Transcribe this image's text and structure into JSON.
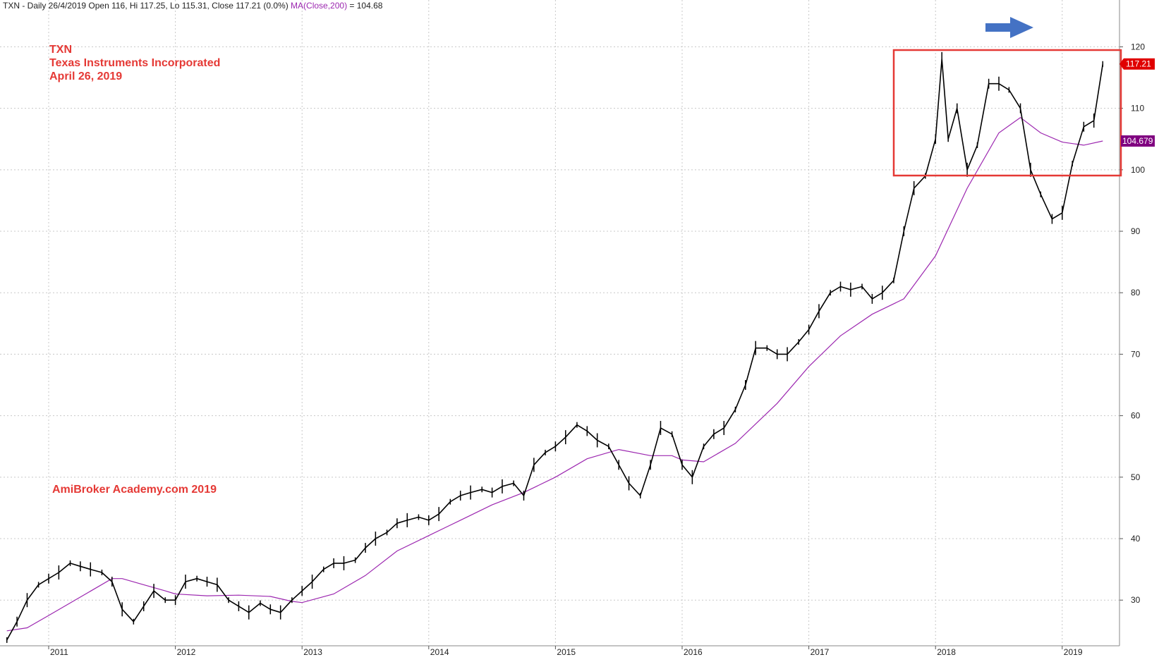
{
  "header": {
    "info_main": "TXN - Daily 26/4/2019 Open 116, Hi 117.25, Lo 115.31, Close 117.21 (0.0%)",
    "info_ma": "MA(Close,200)",
    "info_ma_value": " = 104.68"
  },
  "annotations": {
    "symbol": "TXN",
    "company": "Texas Instruments Incorporated",
    "date": "April 26, 2019",
    "watermark": "AmiBroker Academy.com  2019"
  },
  "colors": {
    "price": "#000000",
    "ma": "#9c27b0",
    "box": "#e53935",
    "arrow": "#4472c4",
    "grid": "#c8c8c8",
    "last_price_bg": "#e00000",
    "ma_label_bg": "#800080"
  },
  "chart_data": {
    "type": "line",
    "x_axis": {
      "ticks": [
        "2011",
        "2012",
        "2013",
        "2014",
        "2015",
        "2016",
        "2017",
        "2018",
        "2019"
      ]
    },
    "y_axis": {
      "ticks": [
        30,
        40,
        50,
        60,
        70,
        80,
        90,
        100,
        110,
        120
      ],
      "range": [
        22.8,
        128.2
      ],
      "side": "right"
    },
    "grid": true,
    "last_price_label": "117.21",
    "ma_label": "104.679",
    "series": [
      {
        "name": "TXN",
        "points": [
          [
            2010.67,
            23.5
          ],
          [
            2010.75,
            26.5
          ],
          [
            2010.83,
            30
          ],
          [
            2010.92,
            32.5
          ],
          [
            2011.0,
            33.5
          ],
          [
            2011.08,
            34.5
          ],
          [
            2011.17,
            36
          ],
          [
            2011.25,
            35.5
          ],
          [
            2011.33,
            35
          ],
          [
            2011.42,
            34.5
          ],
          [
            2011.5,
            33
          ],
          [
            2011.58,
            28.5
          ],
          [
            2011.67,
            26.5
          ],
          [
            2011.75,
            29
          ],
          [
            2011.83,
            31.5
          ],
          [
            2011.92,
            30
          ],
          [
            2012.0,
            30
          ],
          [
            2012.08,
            33
          ],
          [
            2012.17,
            33.5
          ],
          [
            2012.25,
            33
          ],
          [
            2012.33,
            32.5
          ],
          [
            2012.42,
            30
          ],
          [
            2012.5,
            29
          ],
          [
            2012.58,
            28
          ],
          [
            2012.67,
            29.5
          ],
          [
            2012.75,
            28.5
          ],
          [
            2012.83,
            28
          ],
          [
            2012.92,
            30
          ],
          [
            2013.0,
            31.5
          ],
          [
            2013.08,
            33
          ],
          [
            2013.17,
            35
          ],
          [
            2013.25,
            36
          ],
          [
            2013.33,
            36
          ],
          [
            2013.42,
            36.5
          ],
          [
            2013.5,
            38.5
          ],
          [
            2013.58,
            40
          ],
          [
            2013.67,
            41
          ],
          [
            2013.75,
            42.5
          ],
          [
            2013.83,
            43
          ],
          [
            2013.92,
            43.5
          ],
          [
            2014.0,
            43
          ],
          [
            2014.08,
            44
          ],
          [
            2014.17,
            46
          ],
          [
            2014.25,
            47
          ],
          [
            2014.33,
            47.5
          ],
          [
            2014.42,
            48
          ],
          [
            2014.5,
            47.5
          ],
          [
            2014.58,
            48.5
          ],
          [
            2014.67,
            49
          ],
          [
            2014.75,
            47
          ],
          [
            2014.83,
            52
          ],
          [
            2014.92,
            54
          ],
          [
            2015.0,
            55
          ],
          [
            2015.08,
            56.5
          ],
          [
            2015.17,
            58.5
          ],
          [
            2015.25,
            57.5
          ],
          [
            2015.33,
            56
          ],
          [
            2015.42,
            55
          ],
          [
            2015.5,
            52
          ],
          [
            2015.58,
            49
          ],
          [
            2015.67,
            47
          ],
          [
            2015.75,
            52
          ],
          [
            2015.83,
            58
          ],
          [
            2015.92,
            57
          ],
          [
            2016.0,
            52
          ],
          [
            2016.08,
            50
          ],
          [
            2016.17,
            55
          ],
          [
            2016.25,
            57
          ],
          [
            2016.33,
            58
          ],
          [
            2016.42,
            61
          ],
          [
            2016.5,
            65
          ],
          [
            2016.58,
            71
          ],
          [
            2016.67,
            71
          ],
          [
            2016.75,
            70
          ],
          [
            2016.83,
            70
          ],
          [
            2016.92,
            72
          ],
          [
            2017.0,
            74
          ],
          [
            2017.08,
            77
          ],
          [
            2017.17,
            80
          ],
          [
            2017.25,
            81
          ],
          [
            2017.33,
            80.5
          ],
          [
            2017.42,
            81
          ],
          [
            2017.5,
            79
          ],
          [
            2017.58,
            80
          ],
          [
            2017.67,
            82
          ],
          [
            2017.75,
            90
          ],
          [
            2017.83,
            97
          ],
          [
            2017.92,
            99
          ],
          [
            2018.0,
            105
          ],
          [
            2018.05,
            118
          ],
          [
            2018.1,
            105
          ],
          [
            2018.17,
            110
          ],
          [
            2018.25,
            100
          ],
          [
            2018.33,
            104
          ],
          [
            2018.42,
            114
          ],
          [
            2018.5,
            114
          ],
          [
            2018.58,
            113
          ],
          [
            2018.67,
            110
          ],
          [
            2018.75,
            100
          ],
          [
            2018.83,
            96
          ],
          [
            2018.92,
            92
          ],
          [
            2019.0,
            93
          ],
          [
            2019.08,
            101
          ],
          [
            2019.17,
            107
          ],
          [
            2019.25,
            108
          ],
          [
            2019.32,
            117.21
          ]
        ]
      },
      {
        "name": "MA(Close,200)",
        "points": [
          [
            2010.67,
            25
          ],
          [
            2010.83,
            25.5
          ],
          [
            2011.0,
            27.5
          ],
          [
            2011.25,
            30.5
          ],
          [
            2011.5,
            33.5
          ],
          [
            2011.58,
            33.5
          ],
          [
            2011.75,
            32.5
          ],
          [
            2011.92,
            31.5
          ],
          [
            2012.0,
            31
          ],
          [
            2012.25,
            30.7
          ],
          [
            2012.5,
            30.8
          ],
          [
            2012.75,
            30.6
          ],
          [
            2012.92,
            29.8
          ],
          [
            2013.0,
            29.6
          ],
          [
            2013.25,
            31
          ],
          [
            2013.5,
            34
          ],
          [
            2013.75,
            38
          ],
          [
            2014.0,
            40.5
          ],
          [
            2014.25,
            43
          ],
          [
            2014.5,
            45.5
          ],
          [
            2014.75,
            47.5
          ],
          [
            2015.0,
            50
          ],
          [
            2015.25,
            53
          ],
          [
            2015.5,
            54.5
          ],
          [
            2015.75,
            53.5
          ],
          [
            2015.92,
            53.5
          ],
          [
            2016.0,
            52.8
          ],
          [
            2016.17,
            52.5
          ],
          [
            2016.42,
            55.5
          ],
          [
            2016.75,
            62
          ],
          [
            2017.0,
            68
          ],
          [
            2017.25,
            73
          ],
          [
            2017.5,
            76.5
          ],
          [
            2017.75,
            79
          ],
          [
            2018.0,
            86
          ],
          [
            2018.25,
            97
          ],
          [
            2018.5,
            106
          ],
          [
            2018.67,
            108.5
          ],
          [
            2018.83,
            106
          ],
          [
            2019.0,
            104.5
          ],
          [
            2019.17,
            104
          ],
          [
            2019.32,
            104.68
          ]
        ]
      }
    ]
  }
}
